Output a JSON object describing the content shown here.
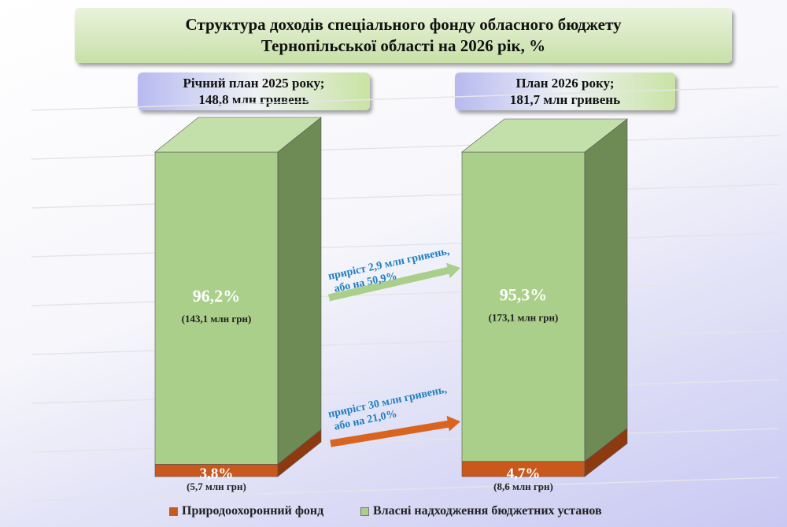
{
  "chart_data": {
    "type": "bar",
    "stacked": true,
    "title": "Структура доходів спеціального фонду обласного бюджету Тернопільської області на 2026 рік, %",
    "categories": [
      {
        "label_line1": "Річний план 2025 року;",
        "label_line2": "148,8 млн гривень"
      },
      {
        "label_line1": "План 2026 року;",
        "label_line2": "181,7 млн гривень"
      }
    ],
    "series": [
      {
        "name": "Природоохоронний фонд",
        "color": "#c9581c",
        "values": [
          3.8,
          4.7
        ],
        "labels": [
          "3,8%",
          "4,7%"
        ],
        "sublabels": [
          "(5,7 млн грн)",
          "(8,6 млн грн)"
        ]
      },
      {
        "name": "Власні надходження бюджетних установ",
        "color": "#a9cf8a",
        "values": [
          96.2,
          95.3
        ],
        "labels": [
          "96,2%",
          "95,3%"
        ],
        "sublabels": [
          "(143,1 млн грн)",
          "(173,1 млн грн)"
        ]
      }
    ],
    "annotations": [
      {
        "line1": "приріст 2,9 млн гривень,",
        "line2": "або на 50,9%",
        "arrow_color": "#a9cf8a"
      },
      {
        "line1": "приріст 30 млн гривень,",
        "line2": "або на 21,0%",
        "arrow_color": "#d8641f"
      }
    ],
    "legend_position": "bottom"
  }
}
